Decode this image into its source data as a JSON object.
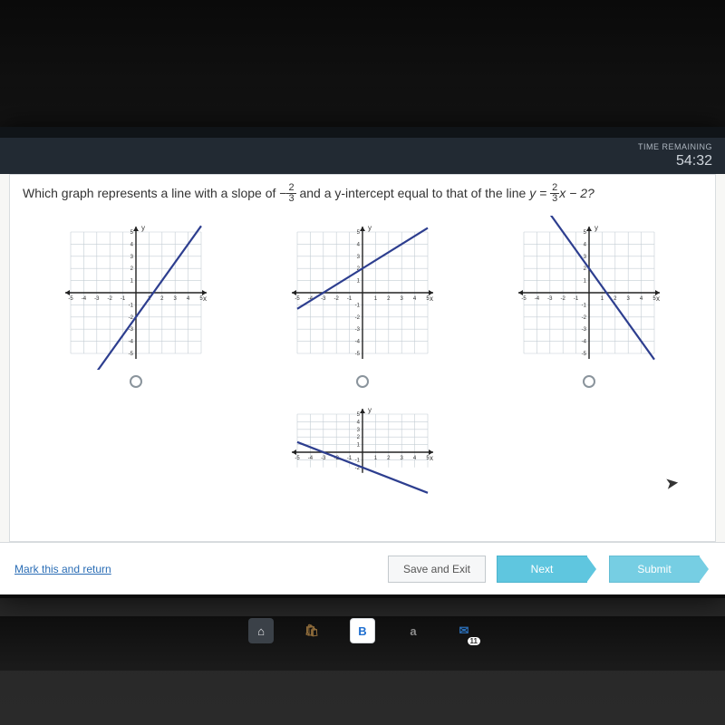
{
  "timer": {
    "label": "TIME REMAINING",
    "value": "54:32"
  },
  "question": {
    "prefix": "Which graph represents a line with a slope of ",
    "slope_sign": "−",
    "slope_num": "2",
    "slope_den": "3",
    "middle": " and a y-intercept equal to that of the line ",
    "eq_lhs": "y = ",
    "eq_num": "2",
    "eq_den": "3",
    "eq_suffix": "x − 2?"
  },
  "graphs": {
    "axis_min": -5,
    "axis_max": 5,
    "tick_labels_x": [
      "-5",
      "-4",
      "-3",
      "-2",
      "-1",
      "1",
      "2",
      "3",
      "4",
      "5"
    ],
    "tick_labels_y": [
      "-5",
      "-4",
      "-3",
      "-2",
      "-1",
      "1",
      "2",
      "3",
      "4",
      "5"
    ],
    "grid_color": "#c4cdd4",
    "axis_color": "#222",
    "line_color": "#2d3e8f",
    "bg_color": "#ffffff",
    "options": [
      {
        "slope": 1.5,
        "intercept": -2
      },
      {
        "slope": 0.6667,
        "intercept": 2
      },
      {
        "slope": -1.5,
        "intercept": 2
      },
      {
        "slope": -0.6667,
        "intercept": -2
      }
    ]
  },
  "buttons": {
    "mark": "Mark this and return",
    "save": "Save and Exit",
    "next": "Next",
    "submit": "Submit"
  },
  "taskbar": {
    "icons": [
      {
        "glyph": "⌂",
        "bg": "#3b4148",
        "fg": "#e8eaec"
      },
      {
        "glyph": "🛍",
        "bg": "transparent",
        "fg": "#8e6b3a"
      },
      {
        "glyph": "B",
        "bg": "#ffffff",
        "fg": "#1f6fd0"
      },
      {
        "glyph": "a",
        "bg": "transparent",
        "fg": "#8e8e8e"
      },
      {
        "glyph": "✉",
        "bg": "transparent",
        "fg": "#2a6db5"
      }
    ],
    "badge": "11"
  }
}
